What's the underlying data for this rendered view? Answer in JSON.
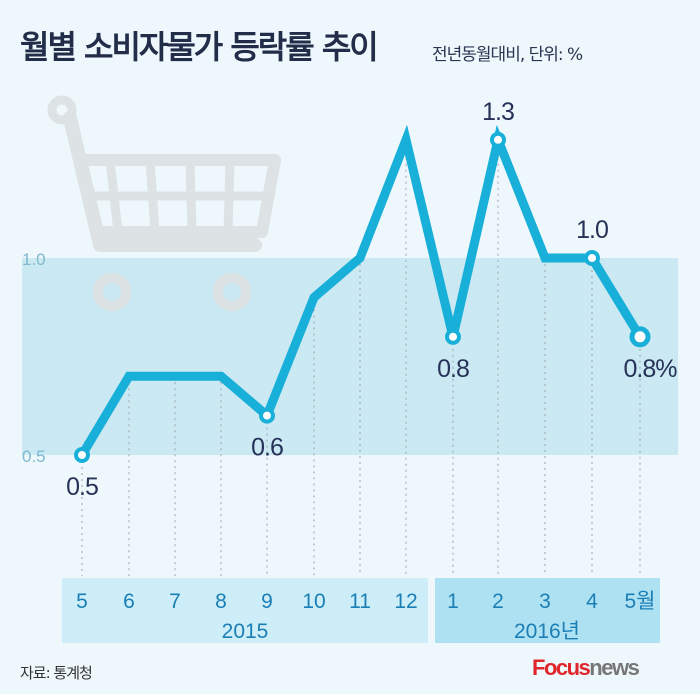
{
  "title": "월별 소비자물가 등락률 추이",
  "subtitle": "전년동월대비, 단위: %",
  "source": "자료: 통계청",
  "logo": {
    "brand": "Focus",
    "suffix": "news"
  },
  "colors": {
    "line": "#18afd9",
    "band": "#cbe9f3",
    "label": "#263257",
    "axis_text": "#1b7fb5",
    "box2015": "#cdeef8",
    "box2016": "#aee2f3",
    "background": "#eef8fc"
  },
  "chart_data": {
    "type": "line",
    "title": "월별 소비자물가 등락률 추이",
    "ylabel": "",
    "xlabel": "",
    "categories": [
      "5",
      "6",
      "7",
      "8",
      "9",
      "10",
      "11",
      "12",
      "1",
      "2",
      "3",
      "4",
      "5월"
    ],
    "years": [
      {
        "label": "2015",
        "months": 8
      },
      {
        "label": "2016년",
        "months": 5
      }
    ],
    "values": [
      0.5,
      0.7,
      0.7,
      0.7,
      0.6,
      0.9,
      1.0,
      1.3,
      0.8,
      1.3,
      1.0,
      1.0,
      0.8
    ],
    "data_labels": [
      {
        "index": 0,
        "text": "0.5",
        "position": "below"
      },
      {
        "index": 4,
        "text": "0.6",
        "position": "below"
      },
      {
        "index": 8,
        "text": "0.8",
        "position": "below"
      },
      {
        "index": 9,
        "text": "1.3",
        "position": "above"
      },
      {
        "index": 11,
        "text": "1.0",
        "position": "above"
      },
      {
        "index": 12,
        "text": "0.8%",
        "position": "below"
      }
    ],
    "yticks": [
      "0.5",
      "1.0"
    ],
    "ytick_values": [
      0.5,
      1.0
    ],
    "shaded_band": [
      0.5,
      1.0
    ],
    "grid": false,
    "legend": "none"
  }
}
